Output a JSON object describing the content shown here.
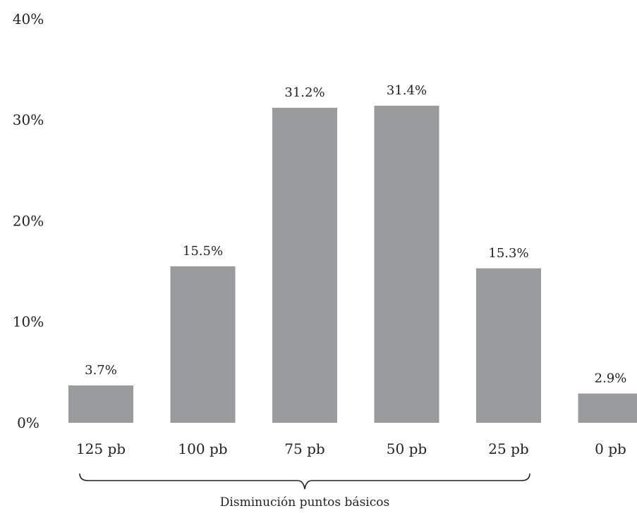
{
  "chart_data": {
    "type": "bar",
    "categories": [
      "125 pb",
      "100 pb",
      "75 pb",
      "50 pb",
      "25 pb",
      "0 pb"
    ],
    "values": [
      3.7,
      15.5,
      31.2,
      31.4,
      15.3,
      2.9
    ],
    "value_labels": [
      "3.7%",
      "15.5%",
      "31.2%",
      "31.4%",
      "15.3%",
      "2.9%"
    ],
    "yticks": [
      0,
      10,
      20,
      30,
      40
    ],
    "ytick_labels": [
      "0%",
      "10%",
      "20%",
      "30%",
      "40%"
    ],
    "ylim": [
      0,
      40
    ],
    "grid": false,
    "legend": "none",
    "bar_color": "#9a9b9d",
    "group_label": "Disminución puntos básicos",
    "group_span": [
      "125 pb",
      "25 pb"
    ]
  }
}
